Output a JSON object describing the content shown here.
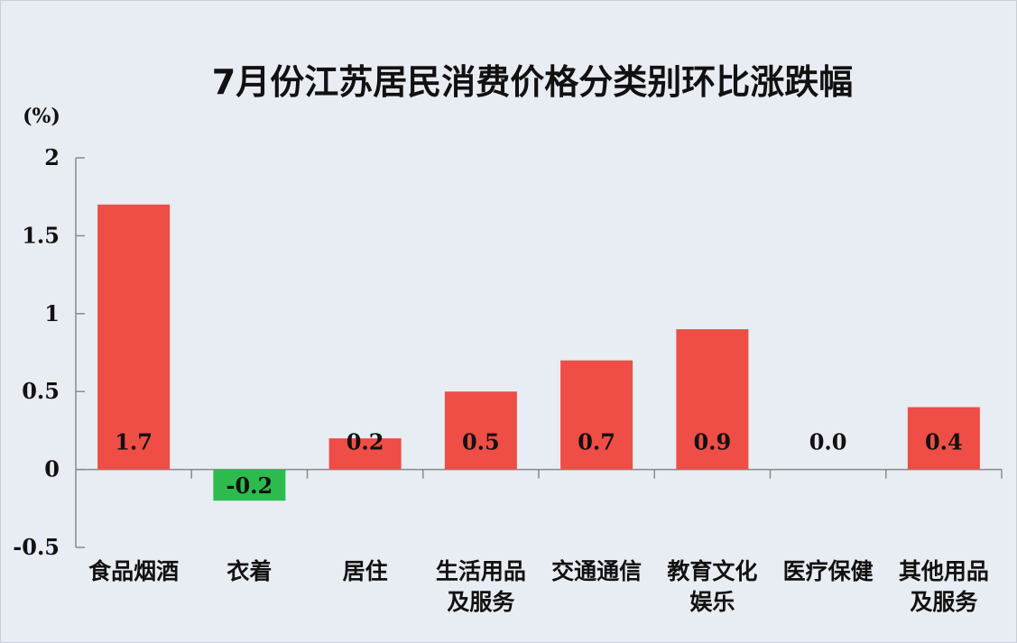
{
  "colors": {
    "background": "#e8ecf3",
    "positive_bar": "#ee4e45",
    "negative_bar": "#2dbb4e",
    "axis": "#8a8a8a",
    "text": "#111111"
  },
  "chart_data": {
    "type": "bar",
    "title": "7月份江苏居民消费价格分类别环比涨跌幅",
    "ylabel": "(%)",
    "xlabel": "",
    "ylim": [
      -0.5,
      2
    ],
    "yticks": [
      "-0.5",
      "0",
      "0.5",
      "1",
      "1.5",
      "2"
    ],
    "grid": false,
    "legend": "none",
    "categories": [
      [
        "食品烟酒"
      ],
      [
        "衣着"
      ],
      [
        "居住"
      ],
      [
        "生活用品",
        "及服务"
      ],
      [
        "交通通信"
      ],
      [
        "教育文化",
        "娱乐"
      ],
      [
        "医疗保健"
      ],
      [
        "其他用品",
        "及服务"
      ]
    ],
    "values": [
      1.7,
      -0.2,
      0.2,
      0.5,
      0.7,
      0.9,
      0.0,
      0.4
    ],
    "data_labels": [
      "1.7",
      "-0.2",
      "0.2",
      "0.5",
      "0.7",
      "0.9",
      "0.0",
      "0.4"
    ]
  }
}
